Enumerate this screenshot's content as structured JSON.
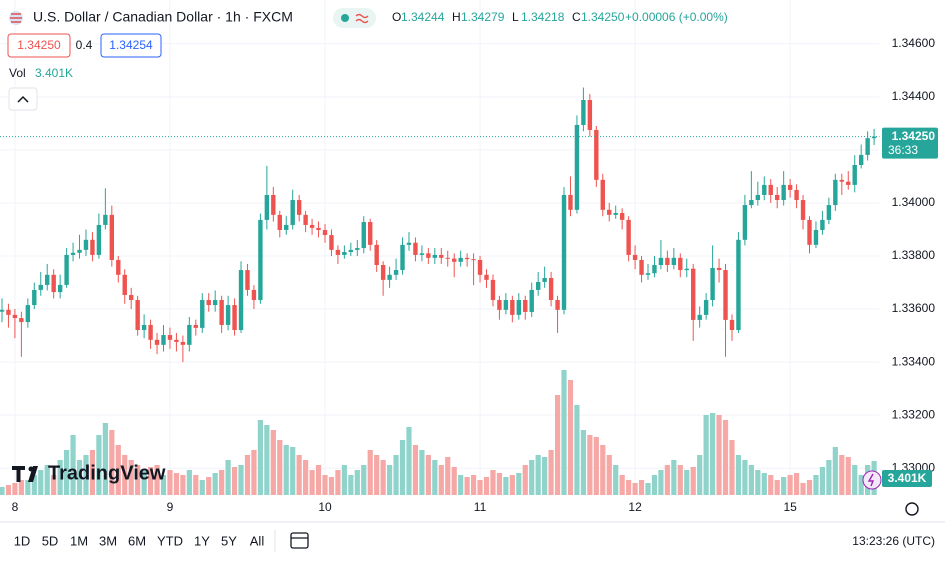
{
  "chart_data": {
    "type": "candlestick",
    "symbol": "U.S. Dollar / Canadian Dollar · 1h · FXCM",
    "ohlc_header": [
      {
        "label": "O",
        "value": "1.34244"
      },
      {
        "label": "H",
        "value": "1.34279"
      },
      {
        "label": "L",
        "value": "1.34218"
      },
      {
        "label": "C",
        "value": "1.34250"
      }
    ],
    "change": "+0.00006 (+0.00%)",
    "sell": "1.34250",
    "spread": "0.4",
    "buy": "1.34254",
    "volume_title": "Vol",
    "last_volume_label": "3.401K",
    "last_price_label": "1.34250",
    "countdown": "36:33",
    "watermark": "TradingView",
    "timeframes": [
      "1D",
      "5D",
      "1M",
      "3M",
      "6M",
      "YTD",
      "1Y",
      "5Y",
      "All"
    ],
    "clock": "13:23:26 (UTC)",
    "up_color": "#26a69a",
    "down_color": "#ef5350",
    "up_volume_color": "#8fd3cb",
    "down_volume_color": "#f5a8a6",
    "grid": true,
    "ylim": [
      1.32899,
      1.34765
    ],
    "yticks": [
      {
        "value": 1.346,
        "label": "1.34600"
      },
      {
        "value": 1.344,
        "label": "1.34400"
      },
      {
        "value": 1.342,
        "label": "1.34200"
      },
      {
        "value": 1.34,
        "label": "1.34000"
      },
      {
        "value": 1.338,
        "label": "1.33800"
      },
      {
        "value": 1.336,
        "label": "1.33600"
      },
      {
        "value": 1.334,
        "label": "1.33400"
      },
      {
        "value": 1.332,
        "label": "1.33200"
      },
      {
        "value": 1.33,
        "label": "1.33000"
      }
    ],
    "categories": [
      null,
      null,
      "8",
      null,
      null,
      null,
      null,
      null,
      null,
      null,
      null,
      null,
      null,
      null,
      null,
      null,
      null,
      null,
      null,
      null,
      null,
      null,
      null,
      null,
      null,
      null,
      "9",
      null,
      null,
      null,
      null,
      null,
      null,
      null,
      null,
      null,
      null,
      null,
      null,
      null,
      null,
      null,
      null,
      null,
      null,
      null,
      null,
      null,
      null,
      null,
      "10",
      null,
      null,
      null,
      null,
      null,
      null,
      null,
      null,
      null,
      null,
      null,
      null,
      null,
      null,
      null,
      null,
      null,
      null,
      null,
      null,
      null,
      null,
      null,
      "11",
      null,
      null,
      null,
      null,
      null,
      null,
      null,
      null,
      null,
      null,
      null,
      null,
      null,
      null,
      null,
      null,
      null,
      null,
      null,
      null,
      null,
      null,
      null,
      "12",
      null,
      null,
      null,
      null,
      null,
      null,
      null,
      null,
      null,
      null,
      null,
      null,
      null,
      null,
      null,
      null,
      null,
      null,
      null,
      null,
      null,
      null,
      null,
      "15",
      null,
      null,
      null,
      null,
      null,
      null,
      null,
      null,
      null,
      null,
      null,
      null,
      null
    ],
    "candles": [
      [
        1.3359,
        1.3364,
        1.3355,
        1.33597
      ],
      [
        1.33597,
        1.3362,
        1.3353,
        1.33578
      ],
      [
        1.33578,
        1.336,
        1.3349,
        1.33566
      ],
      [
        1.33566,
        1.3359,
        1.3342,
        1.33551
      ],
      [
        1.33551,
        1.3364,
        1.3353,
        1.33615
      ],
      [
        1.33615,
        1.337,
        1.336,
        1.33672
      ],
      [
        1.33672,
        1.3374,
        1.3365,
        1.33691
      ],
      [
        1.33691,
        1.3377,
        1.3367,
        1.33729
      ],
      [
        1.33729,
        1.3375,
        1.3364,
        1.33664
      ],
      [
        1.33664,
        1.3373,
        1.3364,
        1.33691
      ],
      [
        1.33691,
        1.3383,
        1.3368,
        1.33804
      ],
      [
        1.33804,
        1.3385,
        1.3378,
        1.33812
      ],
      [
        1.33812,
        1.3388,
        1.3379,
        1.33823
      ],
      [
        1.33823,
        1.339,
        1.338,
        1.33861
      ],
      [
        1.33861,
        1.3389,
        1.3378,
        1.33804
      ],
      [
        1.33804,
        1.3396,
        1.3379,
        1.33917
      ],
      [
        1.33917,
        1.34055,
        1.339,
        1.33955
      ],
      [
        1.33955,
        1.3399,
        1.3376,
        1.33785
      ],
      [
        1.33785,
        1.338,
        1.337,
        1.33729
      ],
      [
        1.33729,
        1.3375,
        1.3362,
        1.33653
      ],
      [
        1.33653,
        1.3368,
        1.336,
        1.33634
      ],
      [
        1.33634,
        1.3365,
        1.335,
        1.33521
      ],
      [
        1.33521,
        1.3358,
        1.3349,
        1.3354
      ],
      [
        1.3354,
        1.3356,
        1.3345,
        1.33484
      ],
      [
        1.33484,
        1.3351,
        1.3343,
        1.33465
      ],
      [
        1.33465,
        1.3354,
        1.3344,
        1.33502
      ],
      [
        1.33502,
        1.3353,
        1.3345,
        1.33484
      ],
      [
        1.33484,
        1.3351,
        1.3344,
        1.33476
      ],
      [
        1.33476,
        1.335,
        1.334,
        1.33465
      ],
      [
        1.33465,
        1.3357,
        1.3344,
        1.3354
      ],
      [
        1.3354,
        1.3356,
        1.335,
        1.33529
      ],
      [
        1.33529,
        1.3366,
        1.3351,
        1.33634
      ],
      [
        1.33634,
        1.3366,
        1.3359,
        1.33615
      ],
      [
        1.33615,
        1.3367,
        1.3359,
        1.33634
      ],
      [
        1.33634,
        1.3365,
        1.3351,
        1.3354
      ],
      [
        1.3354,
        1.3365,
        1.3352,
        1.33615
      ],
      [
        1.33615,
        1.3364,
        1.335,
        1.33521
      ],
      [
        1.33521,
        1.3378,
        1.3351,
        1.33747
      ],
      [
        1.33747,
        1.3377,
        1.3365,
        1.33672
      ],
      [
        1.33672,
        1.3369,
        1.336,
        1.33634
      ],
      [
        1.33634,
        1.3396,
        1.3362,
        1.33936
      ],
      [
        1.33936,
        1.3414,
        1.339,
        1.3403
      ],
      [
        1.3403,
        1.3406,
        1.3393,
        1.33955
      ],
      [
        1.33955,
        1.3397,
        1.3387,
        1.33898
      ],
      [
        1.33898,
        1.3395,
        1.3388,
        1.33917
      ],
      [
        1.33917,
        1.3405,
        1.339,
        1.34011
      ],
      [
        1.34011,
        1.3403,
        1.3393,
        1.33955
      ],
      [
        1.33955,
        1.3397,
        1.3389,
        1.33917
      ],
      [
        1.33917,
        1.3394,
        1.3388,
        1.33906
      ],
      [
        1.33906,
        1.3393,
        1.3387,
        1.33898
      ],
      [
        1.33898,
        1.3392,
        1.3385,
        1.33879
      ],
      [
        1.33879,
        1.339,
        1.338,
        1.33823
      ],
      [
        1.33823,
        1.3384,
        1.3377,
        1.33804
      ],
      [
        1.33804,
        1.3384,
        1.3379,
        1.33815
      ],
      [
        1.33815,
        1.3385,
        1.338,
        1.33823
      ],
      [
        1.33823,
        1.3386,
        1.338,
        1.3383
      ],
      [
        1.3383,
        1.3395,
        1.3381,
        1.33928
      ],
      [
        1.33928,
        1.3394,
        1.3382,
        1.33842
      ],
      [
        1.33842,
        1.3386,
        1.3374,
        1.33766
      ],
      [
        1.33766,
        1.3378,
        1.3365,
        1.3371
      ],
      [
        1.3371,
        1.3376,
        1.3368,
        1.33729
      ],
      [
        1.33729,
        1.3379,
        1.3371,
        1.33747
      ],
      [
        1.33747,
        1.3387,
        1.3373,
        1.33842
      ],
      [
        1.33842,
        1.3389,
        1.3382,
        1.3385
      ],
      [
        1.3385,
        1.3387,
        1.3378,
        1.33804
      ],
      [
        1.33804,
        1.3384,
        1.3378,
        1.3381
      ],
      [
        1.3381,
        1.3383,
        1.3377,
        1.33793
      ],
      [
        1.33793,
        1.3383,
        1.3377,
        1.33804
      ],
      [
        1.33804,
        1.3383,
        1.3377,
        1.33793
      ],
      [
        1.33793,
        1.3382,
        1.3376,
        1.3379
      ],
      [
        1.3379,
        1.3381,
        1.3372,
        1.33778
      ],
      [
        1.33778,
        1.3382,
        1.3376,
        1.33793
      ],
      [
        1.33793,
        1.3381,
        1.3376,
        1.33788
      ],
      [
        1.33788,
        1.3381,
        1.3369,
        1.33785
      ],
      [
        1.33785,
        1.338,
        1.337,
        1.33729
      ],
      [
        1.33729,
        1.3375,
        1.3368,
        1.3371
      ],
      [
        1.3371,
        1.3373,
        1.3361,
        1.33634
      ],
      [
        1.33634,
        1.3365,
        1.3356,
        1.33597
      ],
      [
        1.33597,
        1.3366,
        1.3358,
        1.33634
      ],
      [
        1.33634,
        1.3365,
        1.3355,
        1.33578
      ],
      [
        1.33578,
        1.3366,
        1.3356,
        1.33634
      ],
      [
        1.33634,
        1.3365,
        1.3356,
        1.33589
      ],
      [
        1.33589,
        1.337,
        1.3357,
        1.33672
      ],
      [
        1.33672,
        1.3374,
        1.3365,
        1.33702
      ],
      [
        1.33702,
        1.3376,
        1.3368,
        1.33717
      ],
      [
        1.33717,
        1.3374,
        1.3361,
        1.33634
      ],
      [
        1.33634,
        1.3365,
        1.3351,
        1.33597
      ],
      [
        1.33597,
        1.3406,
        1.3358,
        1.3403
      ],
      [
        1.3403,
        1.341,
        1.3395,
        1.33974
      ],
      [
        1.33974,
        1.3433,
        1.3396,
        1.34294
      ],
      [
        1.34294,
        1.34435,
        1.3427,
        1.34388
      ],
      [
        1.34388,
        1.3441,
        1.3425,
        1.34275
      ],
      [
        1.34275,
        1.3429,
        1.3406,
        1.34087
      ],
      [
        1.34087,
        1.3411,
        1.3395,
        1.33974
      ],
      [
        1.33974,
        1.34,
        1.3393,
        1.33955
      ],
      [
        1.33955,
        1.3399,
        1.3394,
        1.33962
      ],
      [
        1.33962,
        1.3398,
        1.339,
        1.33936
      ],
      [
        1.33936,
        1.3395,
        1.3378,
        1.33804
      ],
      [
        1.33804,
        1.3384,
        1.3375,
        1.33785
      ],
      [
        1.33785,
        1.338,
        1.337,
        1.33729
      ],
      [
        1.33729,
        1.3377,
        1.3371,
        1.33735
      ],
      [
        1.33735,
        1.338,
        1.3372,
        1.33766
      ],
      [
        1.33766,
        1.3386,
        1.3375,
        1.33793
      ],
      [
        1.33793,
        1.3382,
        1.3374,
        1.33766
      ],
      [
        1.33766,
        1.3383,
        1.3375,
        1.33793
      ],
      [
        1.33793,
        1.3381,
        1.3372,
        1.33747
      ],
      [
        1.33747,
        1.3379,
        1.3372,
        1.33752
      ],
      [
        1.33752,
        1.3377,
        1.3348,
        1.33559
      ],
      [
        1.33559,
        1.3361,
        1.3353,
        1.33578
      ],
      [
        1.33578,
        1.3366,
        1.3356,
        1.33634
      ],
      [
        1.33634,
        1.3384,
        1.3361,
        1.33755
      ],
      [
        1.33755,
        1.3379,
        1.337,
        1.33747
      ],
      [
        1.33747,
        1.3377,
        1.3342,
        1.33559
      ],
      [
        1.33559,
        1.3358,
        1.3348,
        1.33521
      ],
      [
        1.33521,
        1.3389,
        1.3351,
        1.33861
      ],
      [
        1.33861,
        1.3403,
        1.3384,
        1.33992
      ],
      [
        1.33992,
        1.3412,
        1.3398,
        1.34011
      ],
      [
        1.34011,
        1.3408,
        1.3399,
        1.3403
      ],
      [
        1.3403,
        1.341,
        1.3401,
        1.34068
      ],
      [
        1.34068,
        1.3409,
        1.34,
        1.3403
      ],
      [
        1.3403,
        1.3406,
        1.3398,
        1.34011
      ],
      [
        1.34011,
        1.3412,
        1.3399,
        1.34068
      ],
      [
        1.34068,
        1.3409,
        1.3402,
        1.34049
      ],
      [
        1.34049,
        1.3407,
        1.3398,
        1.34011
      ],
      [
        1.34011,
        1.3403,
        1.339,
        1.33936
      ],
      [
        1.33936,
        1.3395,
        1.3381,
        1.33842
      ],
      [
        1.33842,
        1.3393,
        1.3383,
        1.33898
      ],
      [
        1.33898,
        1.3397,
        1.3388,
        1.33936
      ],
      [
        1.33936,
        1.3402,
        1.3392,
        1.33992
      ],
      [
        1.33992,
        1.3411,
        1.3397,
        1.34087
      ],
      [
        1.34087,
        1.3411,
        1.3403,
        1.3408
      ],
      [
        1.3408,
        1.3412,
        1.3405,
        1.34068
      ],
      [
        1.34068,
        1.3418,
        1.3404,
        1.34143
      ],
      [
        1.34143,
        1.3422,
        1.3413,
        1.34181
      ],
      [
        1.34181,
        1.3427,
        1.3416,
        1.34244
      ],
      [
        1.34244,
        1.34279,
        1.34218,
        1.3425
      ]
    ],
    "volumes": [
      800,
      1000,
      1200,
      1500,
      1500,
      2000,
      2500,
      3000,
      2000,
      3500,
      4500,
      6000,
      3500,
      4000,
      4500,
      6000,
      7200,
      6500,
      5000,
      4000,
      3500,
      3000,
      2500,
      2800,
      3000,
      2000,
      2500,
      2200,
      2000,
      2500,
      2000,
      1500,
      1800,
      2200,
      2500,
      3500,
      2800,
      3000,
      4000,
      4500,
      7500,
      7000,
      6500,
      5500,
      5000,
      4800,
      4000,
      3500,
      2500,
      3000,
      2000,
      1800,
      2500,
      3000,
      2000,
      2500,
      3000,
      4500,
      4000,
      3500,
      3000,
      4000,
      5500,
      6800,
      5000,
      4500,
      4000,
      3500,
      3000,
      3800,
      2800,
      2000,
      1800,
      2000,
      1500,
      1800,
      2500,
      2200,
      1800,
      2000,
      2200,
      3000,
      3500,
      4000,
      3800,
      4500,
      10000,
      12500,
      11500,
      9000,
      6500,
      6000,
      5800,
      5000,
      4000,
      3000,
      2000,
      1500,
      1200,
      1500,
      1200,
      2000,
      2500,
      3000,
      3500,
      3000,
      2500,
      2800,
      4000,
      8000,
      8200,
      8000,
      7500,
      5500,
      4000,
      3500,
      3000,
      2500,
      2200,
      2000,
      1500,
      1800,
      2000,
      2200,
      1200,
      1500,
      2000,
      2800,
      3500,
      4800,
      4000,
      3800,
      3000,
      2000,
      3000,
      3401
    ]
  }
}
